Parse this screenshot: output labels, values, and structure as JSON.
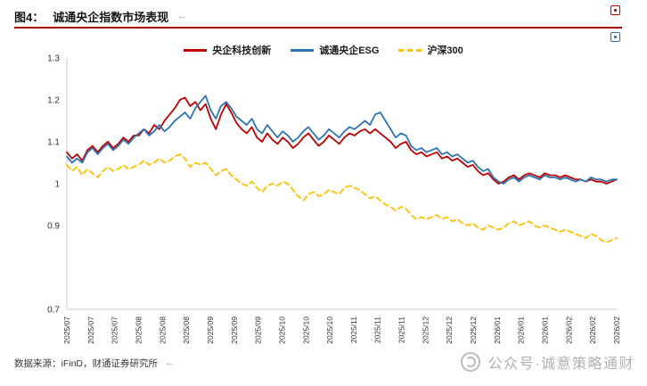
{
  "header": {
    "figure_label": "图4：",
    "title": "诚通央企指数市场表现"
  },
  "marks": {
    "title_return": "←",
    "axis_return": "←",
    "source_return": "←"
  },
  "colors": {
    "title_underline": "#a80000",
    "series_red": "#c00000",
    "series_blue": "#2e74b5",
    "series_yellow": "#ffc000"
  },
  "chart_data": {
    "type": "line",
    "title": "诚通央企指数市场表现",
    "xlabel": "",
    "ylabel": "",
    "ylim": [
      0.7,
      1.3
    ],
    "grid": false,
    "legend_position": "top",
    "y_ticks": [
      {
        "label": "1.3",
        "value": 1.3
      },
      {
        "label": "1.2",
        "value": 1.2
      },
      {
        "label": "1.1",
        "value": 1.1
      },
      {
        "label": "1",
        "value": 1.0
      },
      {
        "label": "0.9",
        "value": 0.9
      },
      {
        "label": "0.7",
        "value": 0.7
      }
    ],
    "x_ticks": [
      "2025/07",
      "2025/07",
      "2025/07",
      "2025/08",
      "2025/08",
      "2025/08",
      "2025/09",
      "2025/09",
      "2025/09",
      "2025/10",
      "2025/10",
      "2025/10",
      "2025/11",
      "2025/11",
      "2025/11",
      "2025/12",
      "2025/12",
      "2025/12",
      "2026/01",
      "2026/01",
      "2026/01",
      "2026/02",
      "2026/02",
      "2026/02"
    ],
    "series": [
      {
        "name": "央企科技创新",
        "color": "#c00000",
        "dash": false,
        "values": [
          1.075,
          1.06,
          1.07,
          1.055,
          1.08,
          1.09,
          1.075,
          1.09,
          1.1,
          1.085,
          1.095,
          1.11,
          1.1,
          1.115,
          1.115,
          1.13,
          1.12,
          1.14,
          1.13,
          1.15,
          1.165,
          1.18,
          1.2,
          1.205,
          1.185,
          1.195,
          1.175,
          1.19,
          1.155,
          1.13,
          1.165,
          1.19,
          1.17,
          1.145,
          1.13,
          1.12,
          1.135,
          1.11,
          1.1,
          1.12,
          1.105,
          1.095,
          1.11,
          1.1,
          1.085,
          1.095,
          1.11,
          1.12,
          1.105,
          1.09,
          1.1,
          1.115,
          1.105,
          1.095,
          1.11,
          1.12,
          1.115,
          1.125,
          1.13,
          1.12,
          1.13,
          1.12,
          1.11,
          1.1,
          1.085,
          1.095,
          1.1,
          1.08,
          1.07,
          1.075,
          1.065,
          1.07,
          1.075,
          1.06,
          1.065,
          1.055,
          1.06,
          1.05,
          1.04,
          1.045,
          1.03,
          1.02,
          1.025,
          1.01,
          1.0,
          1.005,
          1.015,
          1.02,
          1.01,
          1.02,
          1.025,
          1.02,
          1.015,
          1.025,
          1.02,
          1.02,
          1.015,
          1.02,
          1.015,
          1.01,
          1.01,
          1.005,
          1.01,
          1.005,
          1.005,
          1.0,
          1.005,
          1.01
        ]
      },
      {
        "name": "诚通央企ESG",
        "color": "#2e74b5",
        "dash": false,
        "values": [
          1.065,
          1.05,
          1.06,
          1.05,
          1.075,
          1.085,
          1.07,
          1.085,
          1.095,
          1.08,
          1.09,
          1.105,
          1.095,
          1.11,
          1.12,
          1.13,
          1.115,
          1.125,
          1.14,
          1.125,
          1.135,
          1.15,
          1.16,
          1.17,
          1.155,
          1.18,
          1.195,
          1.21,
          1.175,
          1.155,
          1.185,
          1.195,
          1.18,
          1.16,
          1.15,
          1.14,
          1.155,
          1.13,
          1.12,
          1.14,
          1.125,
          1.11,
          1.125,
          1.115,
          1.1,
          1.11,
          1.125,
          1.135,
          1.12,
          1.105,
          1.115,
          1.13,
          1.12,
          1.11,
          1.125,
          1.135,
          1.13,
          1.14,
          1.15,
          1.14,
          1.165,
          1.17,
          1.15,
          1.13,
          1.11,
          1.12,
          1.115,
          1.09,
          1.08,
          1.085,
          1.075,
          1.08,
          1.085,
          1.07,
          1.075,
          1.065,
          1.07,
          1.06,
          1.05,
          1.055,
          1.04,
          1.03,
          1.035,
          1.015,
          1.005,
          1.0,
          1.01,
          1.015,
          1.005,
          1.015,
          1.02,
          1.015,
          1.01,
          1.02,
          1.015,
          1.015,
          1.01,
          1.015,
          1.01,
          1.005,
          1.01,
          1.005,
          1.015,
          1.01,
          1.01,
          1.005,
          1.01,
          1.01
        ]
      },
      {
        "name": "沪深300",
        "color": "#ffc000",
        "dash": true,
        "values": [
          1.045,
          1.03,
          1.04,
          1.02,
          1.035,
          1.025,
          1.015,
          1.03,
          1.04,
          1.03,
          1.035,
          1.045,
          1.035,
          1.04,
          1.045,
          1.055,
          1.045,
          1.05,
          1.06,
          1.05,
          1.055,
          1.065,
          1.07,
          1.06,
          1.04,
          1.05,
          1.045,
          1.05,
          1.035,
          1.02,
          1.03,
          1.035,
          1.02,
          1.01,
          1.0,
          0.995,
          1.005,
          0.99,
          0.98,
          0.995,
          1.0,
          0.995,
          1.005,
          1.0,
          0.985,
          0.97,
          0.96,
          0.975,
          0.98,
          0.97,
          0.975,
          0.985,
          0.98,
          0.975,
          0.99,
          0.995,
          0.99,
          0.985,
          0.975,
          0.965,
          0.97,
          0.96,
          0.95,
          0.945,
          0.935,
          0.945,
          0.94,
          0.925,
          0.915,
          0.92,
          0.915,
          0.92,
          0.925,
          0.915,
          0.92,
          0.91,
          0.915,
          0.905,
          0.9,
          0.905,
          0.895,
          0.89,
          0.9,
          0.895,
          0.89,
          0.895,
          0.905,
          0.91,
          0.9,
          0.905,
          0.91,
          0.9,
          0.895,
          0.9,
          0.895,
          0.89,
          0.885,
          0.89,
          0.885,
          0.88,
          0.875,
          0.87,
          0.88,
          0.875,
          0.865,
          0.86,
          0.865,
          0.87
        ]
      }
    ]
  },
  "footer": {
    "source": "数据来源：iFinD，财通证券研究所"
  },
  "watermark": {
    "text": "公众号·诚意策略通财"
  }
}
